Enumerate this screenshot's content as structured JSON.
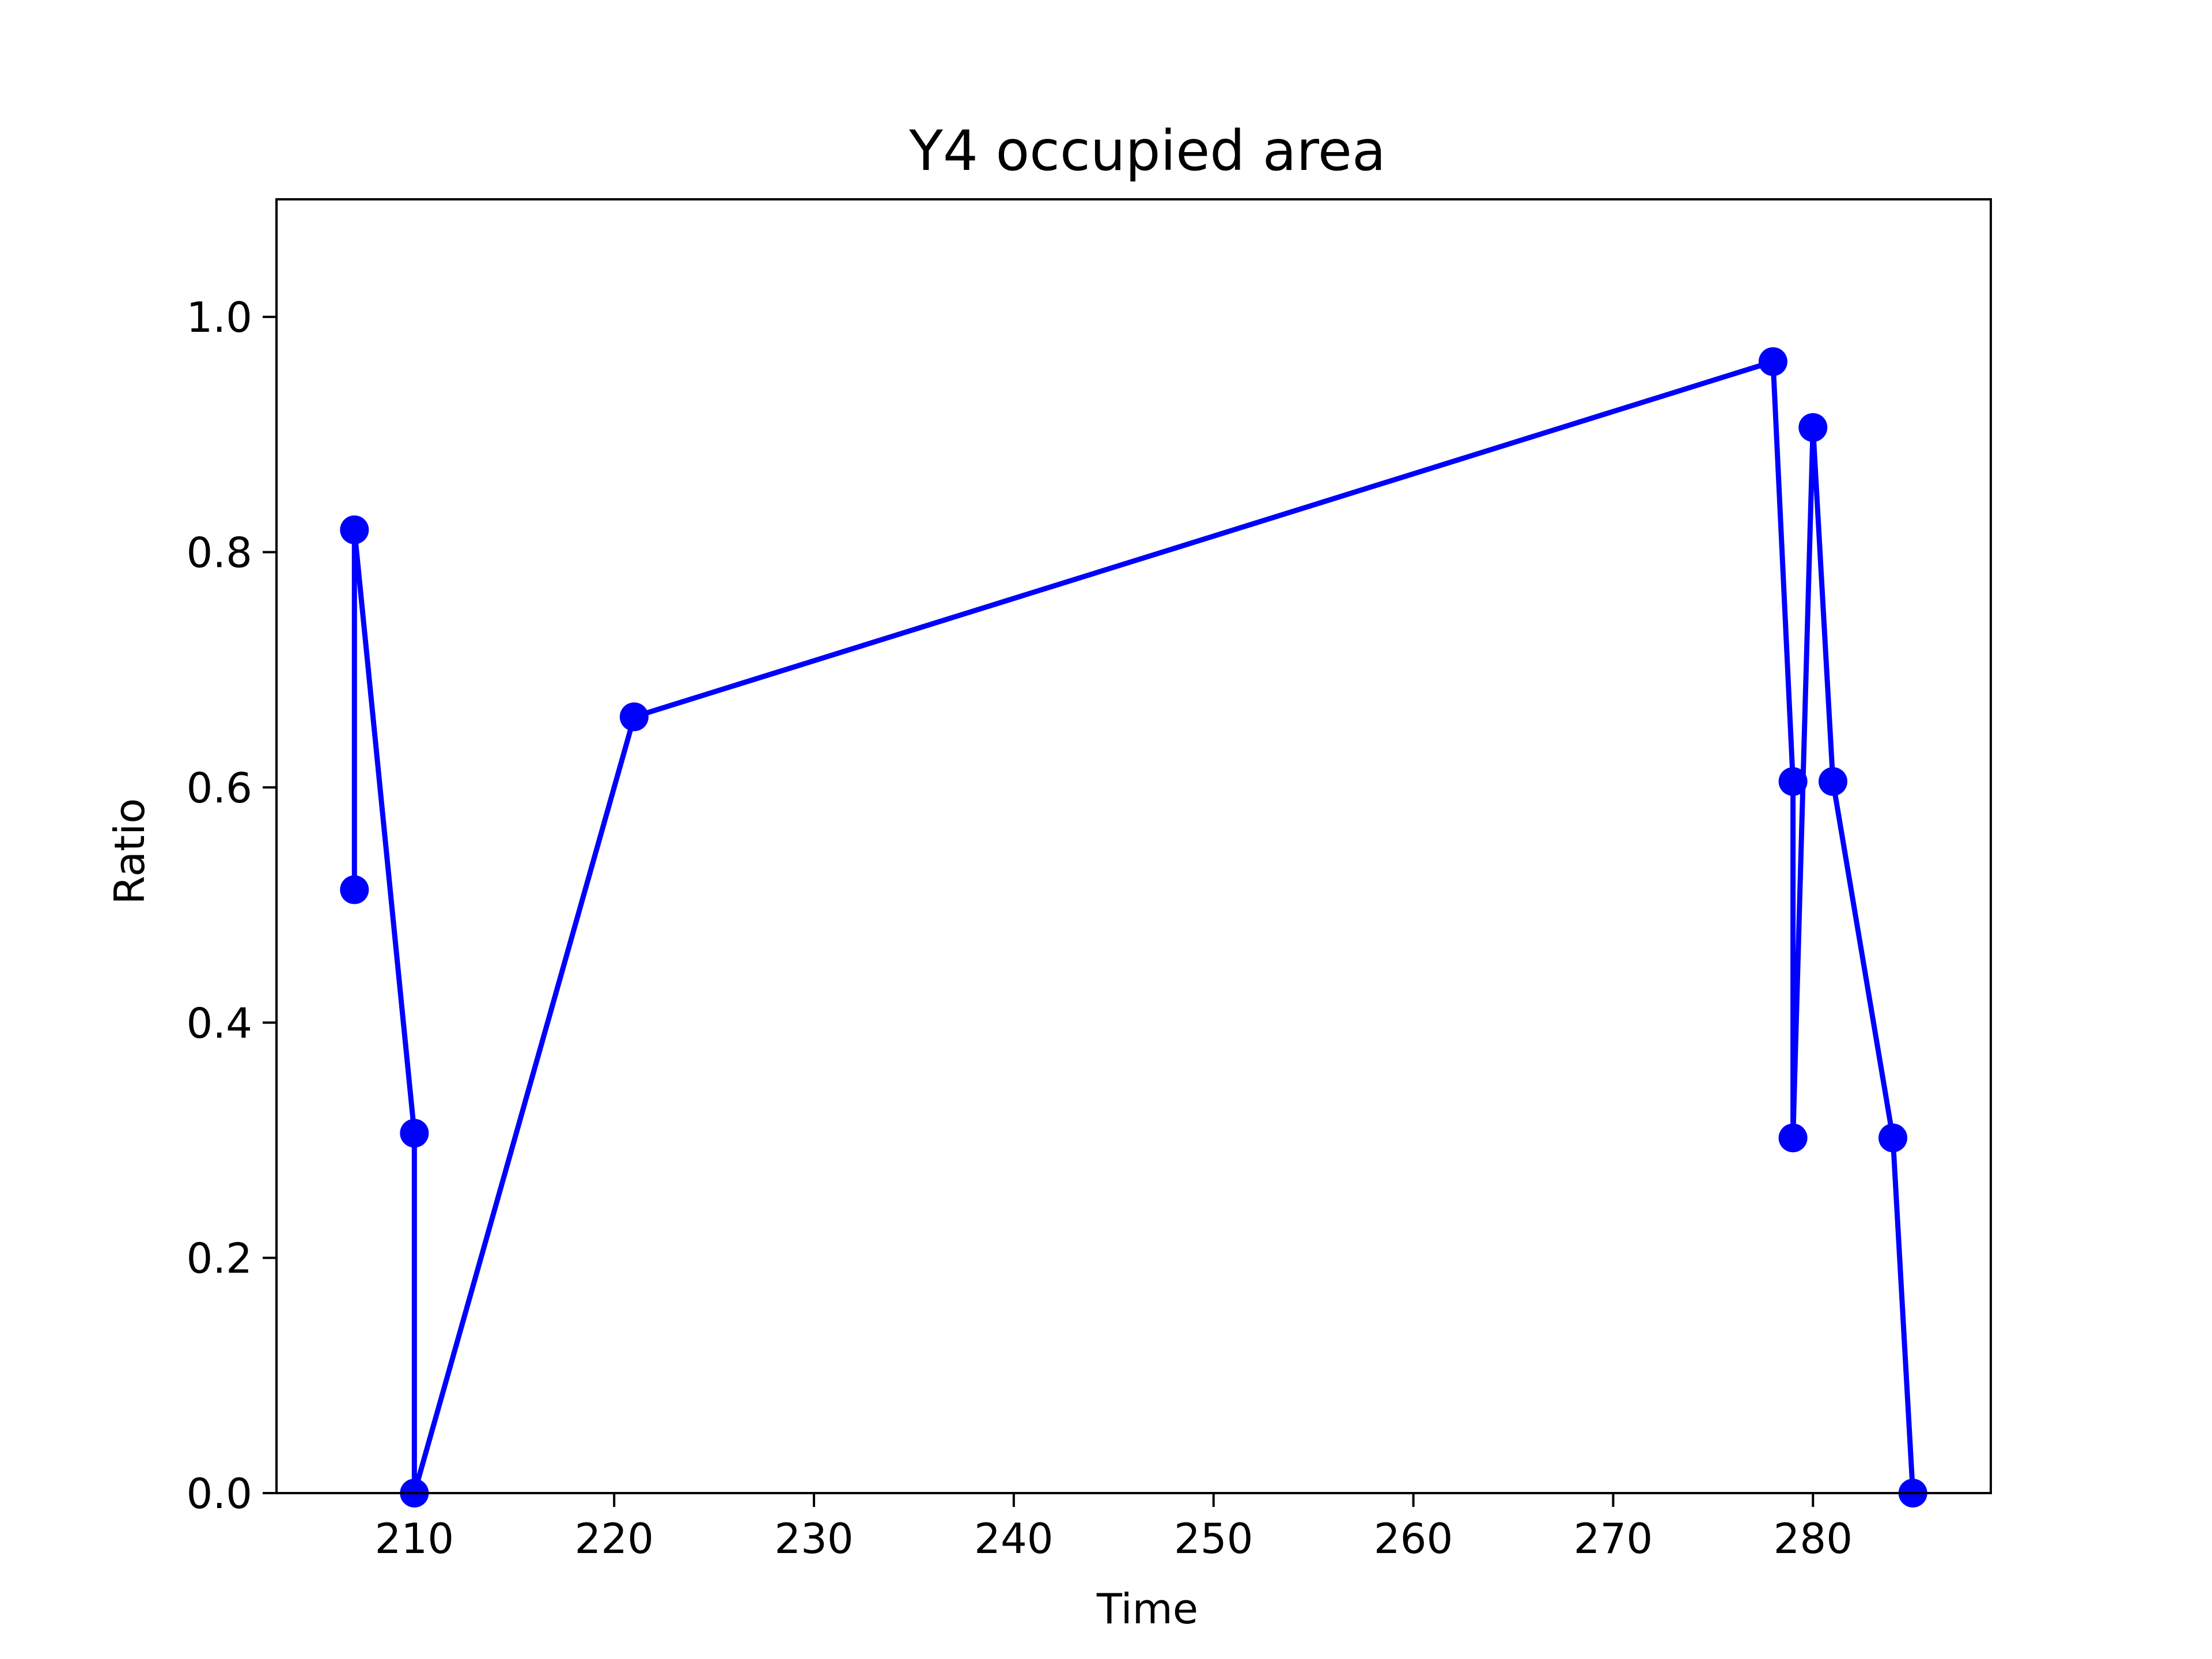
{
  "chart_data": {
    "type": "line",
    "title": "Y4 occupied area",
    "xlabel": "Time",
    "ylabel": "Ratio",
    "xlim": [
      203.1,
      288.9
    ],
    "ylim": [
      0.0,
      1.1
    ],
    "xticks": [
      210,
      220,
      230,
      240,
      250,
      260,
      270,
      280
    ],
    "xtick_labels": [
      "210",
      "220",
      "230",
      "240",
      "250",
      "260",
      "270",
      "280"
    ],
    "yticks": [
      0.0,
      0.2,
      0.4,
      0.6,
      0.8,
      1.0
    ],
    "ytick_labels": [
      "0.0",
      "0.2",
      "0.4",
      "0.6",
      "0.8",
      "1.0"
    ],
    "grid": false,
    "series": [
      {
        "color": "#0000ff",
        "marker": "circle",
        "x": [
          207,
          207,
          210,
          210,
          221,
          278,
          279,
          279,
          280,
          281,
          284,
          285
        ],
        "y": [
          0.513,
          0.819,
          0.306,
          0.0,
          0.66,
          0.962,
          0.605,
          0.302,
          0.906,
          0.605,
          0.302,
          0.0
        ]
      }
    ]
  }
}
